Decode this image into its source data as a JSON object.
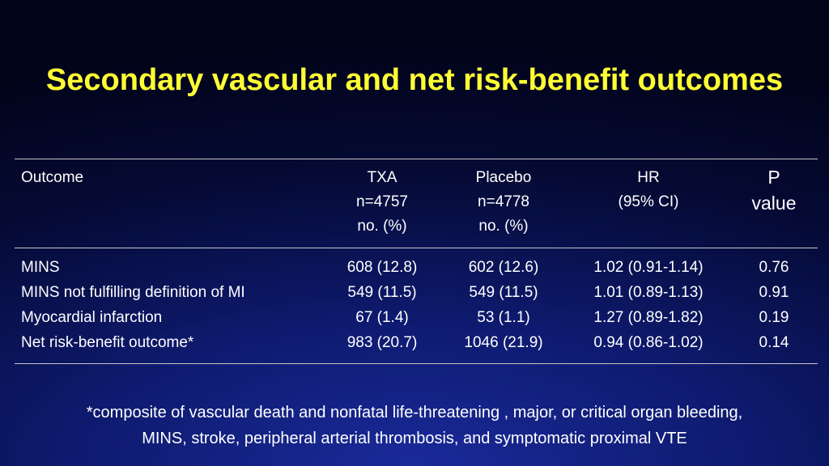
{
  "title": "Secondary vascular and net risk-benefit outcomes",
  "table": {
    "headers": {
      "outcome": "Outcome",
      "txa": [
        "TXA",
        "n=4757",
        "no. (%)"
      ],
      "placebo": [
        "Placebo",
        "n=4778",
        "no. (%)"
      ],
      "hr": [
        "HR",
        "(95% CI)"
      ],
      "p": [
        "P",
        "value"
      ]
    },
    "rows": [
      {
        "outcome": "MINS",
        "txa": "608 (12.8)",
        "placebo": "602 (12.6)",
        "hr": "1.02 (0.91-1.14)",
        "p": "0.76"
      },
      {
        "outcome": "MINS not fulfilling definition of MI",
        "txa": "549 (11.5)",
        "placebo": "549 (11.5)",
        "hr": "1.01 (0.89-1.13)",
        "p": "0.91"
      },
      {
        "outcome": "Myocardial infarction",
        "txa": "67 (1.4)",
        "placebo": "53 (1.1)",
        "hr": "1.27 (0.89-1.82)",
        "p": "0.19"
      },
      {
        "outcome": "Net risk-benefit outcome*",
        "txa": "983 (20.7)",
        "placebo": "1046 (21.9)",
        "hr": "0.94 (0.86-1.02)",
        "p": "0.14"
      }
    ]
  },
  "footnote": {
    "line1": "*composite of vascular death and nonfatal life-threatening , major, or critical organ bleeding,",
    "line2": "MINS, stroke, peripheral arterial thrombosis, and symptomatic proximal VTE"
  },
  "colors": {
    "title": "#ffff33",
    "text": "#ffffff",
    "rule": "#c8c8c8",
    "background": "#0e1a6e"
  }
}
